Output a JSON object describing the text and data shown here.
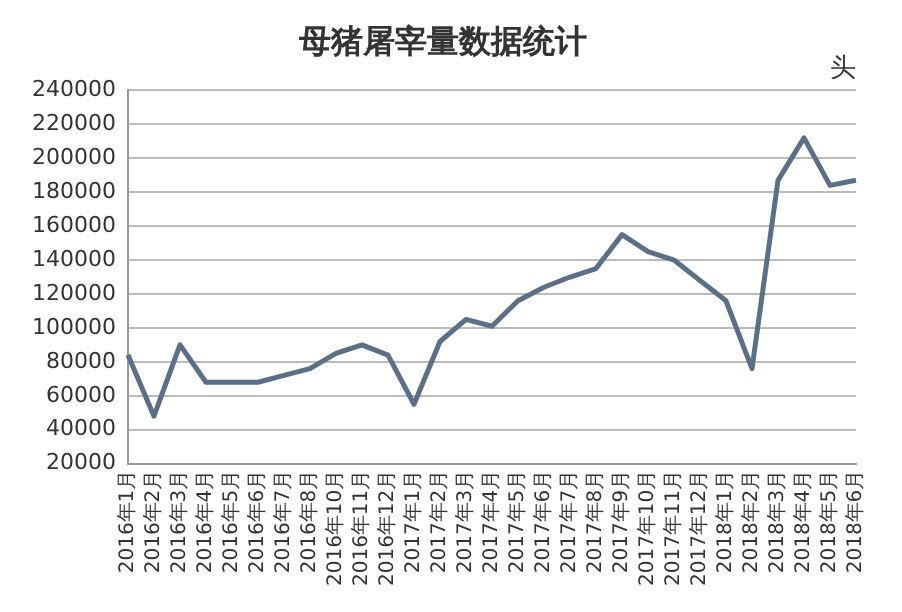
{
  "chart_data": {
    "type": "line",
    "title": "母猪屠宰量数据统计",
    "annotations": [
      "头"
    ],
    "categories": [
      "2016年1月",
      "2016年2月",
      "2016年3月",
      "2016年4月",
      "2016年5月",
      "2016年6月",
      "2016年7月",
      "2016年8月",
      "2016年10月",
      "2016年11月",
      "2016年12月",
      "2017年1月",
      "2017年2月",
      "2017年3月",
      "2017年4月",
      "2017年5月",
      "2017年6月",
      "2017年7月",
      "2017年8月",
      "2017年9月",
      "2017年10月",
      "2017年11月",
      "2017年12月",
      "2018年1月",
      "2018年2月",
      "2018年3月",
      "2018年4月",
      "2018年5月",
      "2018年6月"
    ],
    "series": [
      {
        "color": "#5b6f86",
        "values": [
          84000,
          48000,
          90000,
          68000,
          68000,
          68000,
          72000,
          76000,
          85000,
          90000,
          84000,
          55000,
          92000,
          105000,
          101000,
          116000,
          124000,
          130000,
          135000,
          155000,
          145000,
          140000,
          128000,
          116000,
          76000,
          187000,
          212000,
          184000,
          187000
        ]
      }
    ],
    "ylim": [
      20000,
      240000
    ],
    "yticks": [
      20000,
      40000,
      60000,
      80000,
      100000,
      120000,
      140000,
      160000,
      180000,
      200000,
      220000,
      240000
    ],
    "grid": "y",
    "legend": false,
    "marker": "none",
    "line_style": "solid"
  }
}
